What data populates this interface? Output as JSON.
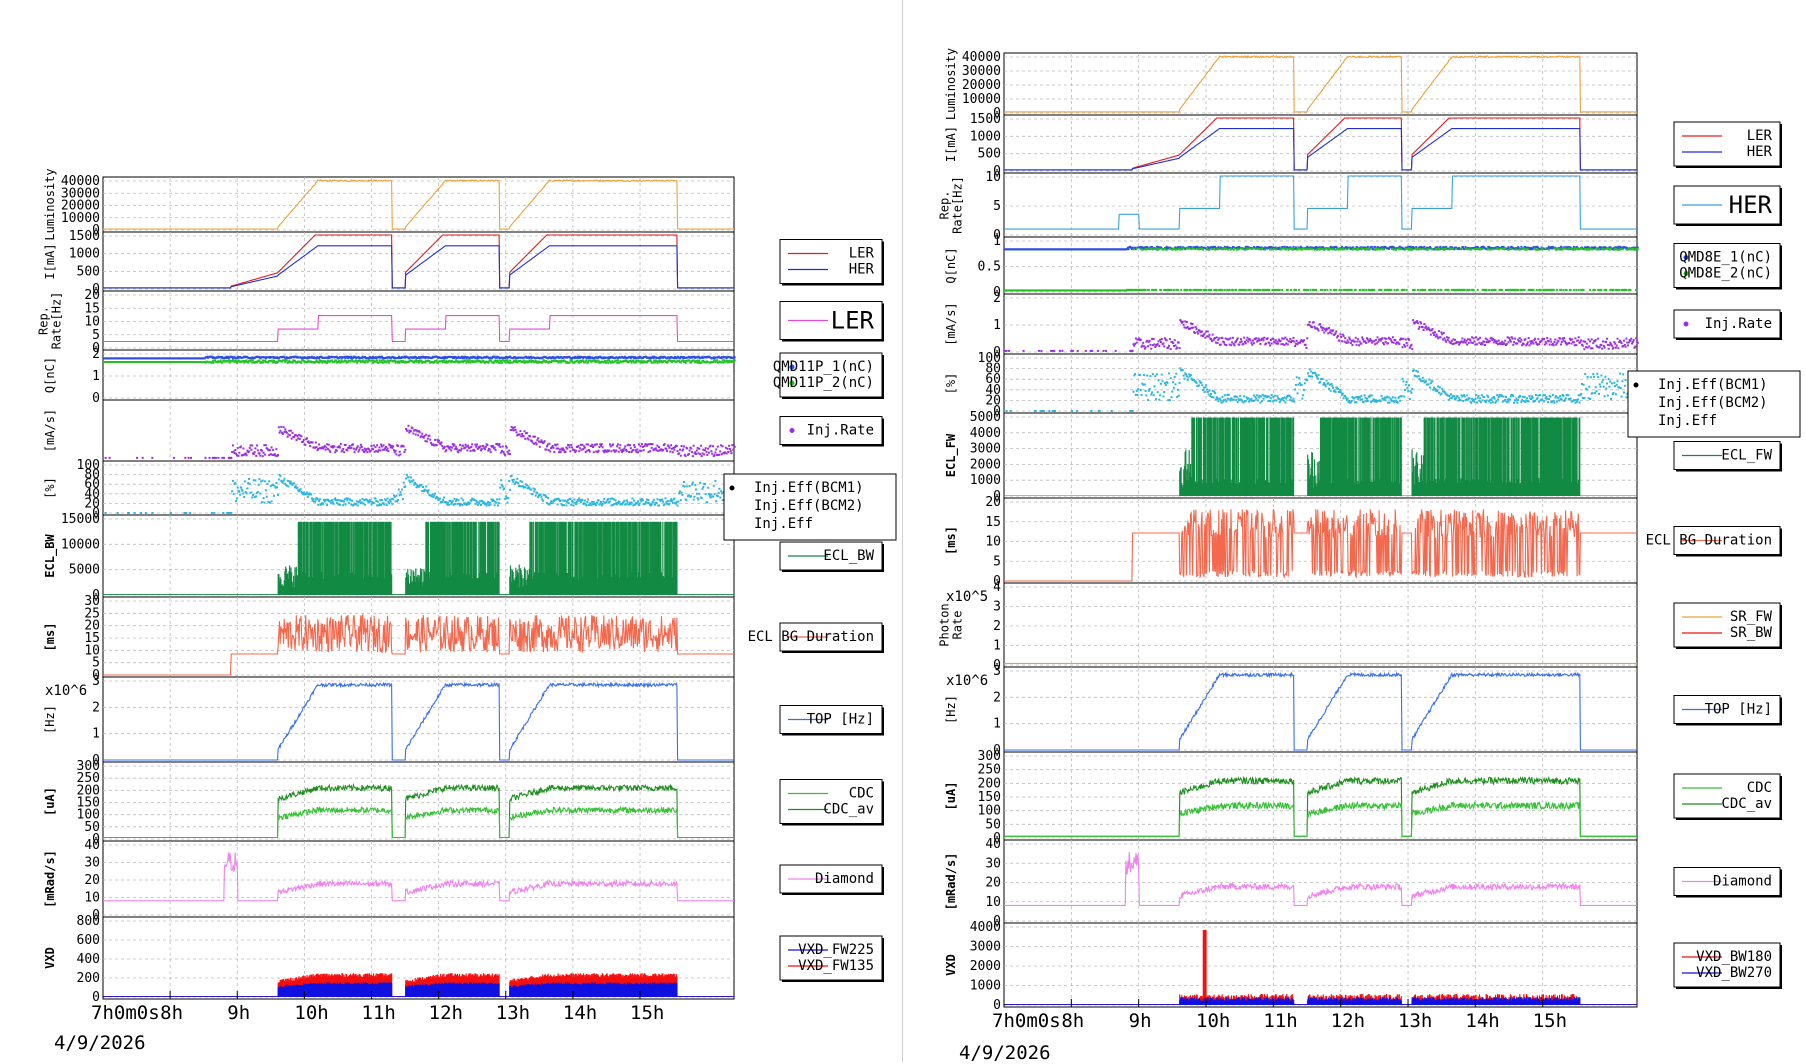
{
  "colors": {
    "luminosity": "#e8a33c",
    "ler": "#e41a1c",
    "her": "#1f2fd4",
    "rep": "#e64bd0",
    "rep_her": "#3aa0e0",
    "q1": "#2f50e0",
    "q2": "#22c422",
    "inj": "#9a2fe0",
    "eff": "#2bb6e0",
    "ecl": "#128a44",
    "eclbg": "#f4684e",
    "top": "#3a6ee8",
    "cdc": "#1e8e1e",
    "cdc_av": "#36c036",
    "diamond": "#ee82ee",
    "vxd1": "#1010e0",
    "vxd2": "#f21010",
    "sr_fw": "#e8a33c",
    "sr_bw": "#f21010"
  },
  "time_axis": {
    "ticks": [
      "7h0m0s",
      "8h",
      "9h",
      "10h",
      "11h",
      "12h",
      "13h",
      "14h",
      "15h"
    ],
    "range_hours": [
      7,
      16.4
    ]
  },
  "footer": {
    "left_date": "4/9/2026",
    "right_date": "4/9/2026"
  },
  "chart_data": [
    {
      "type": "line",
      "panel": "left",
      "rows": [
        {
          "ylabel": "Luminosity",
          "ymax": 40000,
          "yticks": [
            "40000",
            "30000",
            "20000",
            "10000",
            "0"
          ],
          "series": [
            {
              "kind": "luminosity",
              "color": "luminosity"
            }
          ],
          "legend": []
        },
        {
          "ylabel": "I[mA]",
          "ymax": 1500,
          "yticks": [
            "1500",
            "1000",
            "500",
            "0"
          ],
          "series": [
            {
              "kind": "current_ler",
              "color": "ler"
            },
            {
              "kind": "current_her",
              "color": "her"
            }
          ],
          "legend": [
            {
              "name": "LER",
              "color": "ler"
            },
            {
              "name": "HER",
              "color": "her"
            }
          ]
        },
        {
          "ylabel": "Rep. Rate[Hz]",
          "ymax": 20,
          "yticks": [
            "20",
            "15",
            "10",
            "5",
            "0"
          ],
          "series": [
            {
              "kind": "rep_ler",
              "color": "rep"
            }
          ],
          "legend": [
            {
              "name": "LER",
              "color": "rep",
              "big": true
            }
          ]
        },
        {
          "ylabel": "Q[nC]",
          "ymax": 3,
          "yticks": [
            "2",
            "1",
            "0"
          ],
          "series": [
            {
              "kind": "charge1",
              "color": "q1"
            },
            {
              "kind": "charge2",
              "color": "q2"
            }
          ],
          "legend": [
            {
              "name": "QMD11P_1(nC)",
              "color": "q1",
              "dot": true
            },
            {
              "name": "QMD11P_2(nC)",
              "color": "q2",
              "dot": true
            }
          ]
        },
        {
          "ylabel": "[mA/s]",
          "ymax": 2,
          "yticks": [],
          "series": [
            {
              "kind": "injrate",
              "color": "inj"
            }
          ],
          "legend": [
            {
              "name": "Inj.Rate",
              "color": "inj",
              "dot": true
            }
          ]
        },
        {
          "ylabel": "[%]",
          "ymax": 100,
          "yticks": [
            "100",
            "80",
            "60",
            "40",
            "20",
            "0"
          ],
          "series": [
            {
              "kind": "injeff",
              "color": "eff"
            }
          ],
          "legend": []
        },
        {
          "ylabel": "ECL_BW",
          "ymax": 15000,
          "yticks": [
            "15000",
            "10000",
            "5000",
            "0"
          ],
          "series": [
            {
              "kind": "ecl",
              "color": "ecl"
            }
          ],
          "legend": [
            {
              "name": "ECL_BW",
              "color": "ecl"
            }
          ]
        },
        {
          "ylabel": "[ms]",
          "ymax": 30,
          "yticks": [
            "30",
            "25",
            "20",
            "15",
            "10",
            "5",
            "0"
          ],
          "series": [
            {
              "kind": "eclbg",
              "color": "eclbg"
            }
          ],
          "legend": [
            {
              "name": "ECL BG Duration",
              "color": "eclbg"
            }
          ]
        },
        {
          "ylabel": "[Hz]",
          "ymax": 4,
          "yticks": [
            "3",
            "2",
            "1",
            "0"
          ],
          "exponent": "x10^6",
          "series": [
            {
              "kind": "top",
              "color": "top"
            }
          ],
          "legend": [
            {
              "name": "TOP [Hz]",
              "color": "top"
            }
          ]
        },
        {
          "ylabel": "[uA]",
          "ymax": 300,
          "yticks": [
            "300",
            "250",
            "200",
            "150",
            "100",
            "50",
            "0"
          ],
          "series": [
            {
              "kind": "cdc",
              "color": "cdc"
            },
            {
              "kind": "cdc_av",
              "color": "cdc_av"
            }
          ],
          "legend": [
            {
              "name": "CDC",
              "color": "cdc_av"
            },
            {
              "name": "CDC_av",
              "color": "cdc"
            }
          ]
        },
        {
          "ylabel": "[mRad/s]",
          "ymax": 50,
          "yticks": [
            "40",
            "30",
            "20",
            "10",
            "0"
          ],
          "series": [
            {
              "kind": "diamond",
              "color": "diamond"
            }
          ],
          "legend": [
            {
              "name": "Diamond",
              "color": "diamond"
            }
          ]
        },
        {
          "ylabel": "VXD",
          "ymax": 800,
          "yticks": [
            "800",
            "600",
            "400",
            "200",
            "0"
          ],
          "series": [
            {
              "kind": "vxd_red",
              "color": "vxd2"
            },
            {
              "kind": "vxd_blue",
              "color": "vxd1"
            }
          ],
          "legend": [
            {
              "name": "VXD_FW225",
              "color": "vxd1"
            },
            {
              "name": "VXD_FW135",
              "color": "vxd2"
            }
          ]
        }
      ],
      "floating_legend": [
        "Inj.Eff(BCM1)",
        "Inj.Eff(BCM2)",
        "Inj.Eff"
      ]
    },
    {
      "type": "line",
      "panel": "right",
      "rows": [
        {
          "ylabel": "Luminosity",
          "ymax": 40000,
          "yticks": [
            "40000",
            "30000",
            "20000",
            "10000",
            "0"
          ],
          "series": [
            {
              "kind": "luminosity",
              "color": "luminosity"
            }
          ],
          "legend": []
        },
        {
          "ylabel": "I[mA]",
          "ymax": 1500,
          "yticks": [
            "1500",
            "1000",
            "500",
            "0"
          ],
          "series": [
            {
              "kind": "current_ler",
              "color": "ler"
            },
            {
              "kind": "current_her",
              "color": "her"
            }
          ],
          "legend": [
            {
              "name": "LER",
              "color": "ler"
            },
            {
              "name": "HER",
              "color": "her"
            }
          ]
        },
        {
          "ylabel": "Rep. Rate[Hz]",
          "ymax": 10,
          "yticks": [
            "10",
            "5",
            "0"
          ],
          "series": [
            {
              "kind": "rep_her",
              "color": "rep_her"
            }
          ],
          "legend": [
            {
              "name": "HER",
              "color": "rep_her",
              "big": true
            }
          ]
        },
        {
          "ylabel": "Q[nC]",
          "ymax": 1.2,
          "yticks": [
            "1",
            "0.5",
            "0"
          ],
          "series": [
            {
              "kind": "charge1r",
              "color": "q1"
            },
            {
              "kind": "charge2r",
              "color": "q2"
            }
          ],
          "legend": [
            {
              "name": "QMD8E_1(nC)",
              "color": "q1",
              "dot": true
            },
            {
              "name": "QMD8E_2(nC)",
              "color": "q2",
              "dot": true
            }
          ]
        },
        {
          "ylabel": "[mA/s]",
          "ymax": 3,
          "yticks": [
            "2",
            "1",
            "0"
          ],
          "series": [
            {
              "kind": "injrate",
              "color": "inj"
            }
          ],
          "legend": [
            {
              "name": "Inj.Rate",
              "color": "inj",
              "dot": true
            }
          ]
        },
        {
          "ylabel": "[%]",
          "ymax": 100,
          "yticks": [
            "100",
            "80",
            "60",
            "40",
            "20",
            "0"
          ],
          "series": [
            {
              "kind": "injeff",
              "color": "eff"
            }
          ],
          "legend": []
        },
        {
          "ylabel": "ECL_FW",
          "ymax": 5000,
          "yticks": [
            "5000",
            "4000",
            "3000",
            "2000",
            "1000",
            "0"
          ],
          "series": [
            {
              "kind": "eclfw",
              "color": "ecl"
            }
          ],
          "legend": [
            {
              "name": "ECL_FW",
              "color": "ecl"
            }
          ]
        },
        {
          "ylabel": "[ms]",
          "ymax": 20,
          "yticks": [
            "20",
            "15",
            "10",
            "5",
            "0"
          ],
          "series": [
            {
              "kind": "eclbgr",
              "color": "eclbg"
            }
          ],
          "legend": [
            {
              "name": "ECL BG Duration",
              "color": "eclbg"
            }
          ]
        },
        {
          "ylabel": "Photon Rate",
          "ymax": 5,
          "yticks": [
            "4",
            "3",
            "2",
            "1",
            "0"
          ],
          "exponent": "x10^5",
          "series": [
            {
              "kind": "photon",
              "color": "sr_fw"
            }
          ],
          "legend": [
            {
              "name": "SR_FW",
              "color": "sr_fw"
            },
            {
              "name": "SR_BW",
              "color": "sr_bw"
            }
          ]
        },
        {
          "ylabel": "[Hz]",
          "ymax": 4,
          "yticks": [
            "3",
            "2",
            "1",
            "0"
          ],
          "exponent": "x10^6",
          "series": [
            {
              "kind": "top",
              "color": "top"
            }
          ],
          "legend": [
            {
              "name": "TOP [Hz]",
              "color": "top"
            }
          ]
        },
        {
          "ylabel": "[uA]",
          "ymax": 300,
          "yticks": [
            "300",
            "250",
            "200",
            "150",
            "100",
            "50",
            "0"
          ],
          "series": [
            {
              "kind": "cdc",
              "color": "cdc"
            },
            {
              "kind": "cdc_av",
              "color": "cdc_av"
            }
          ],
          "legend": [
            {
              "name": "CDC",
              "color": "cdc_av"
            },
            {
              "name": "CDC_av",
              "color": "cdc"
            }
          ]
        },
        {
          "ylabel": "[mRad/s]",
          "ymax": 50,
          "yticks": [
            "40",
            "30",
            "20",
            "10",
            "0"
          ],
          "series": [
            {
              "kind": "diamond",
              "color": "diamond"
            }
          ],
          "legend": [
            {
              "name": "Diamond",
              "color": "diamond"
            }
          ]
        },
        {
          "ylabel": "VXD",
          "ymax": 4000,
          "yticks": [
            "4000",
            "3000",
            "2000",
            "1000",
            "0"
          ],
          "series": [
            {
              "kind": "vxd_rb",
              "color": "vxd2"
            },
            {
              "kind": "vxd_bb",
              "color": "vxd1"
            }
          ],
          "legend": [
            {
              "name": "VXD_BW180",
              "color": "vxd2"
            },
            {
              "name": "VXD_BW270",
              "color": "vxd1"
            }
          ]
        }
      ],
      "floating_legend": [
        "Inj.Eff(BCM1)",
        "Inj.Eff(BCM2)",
        "Inj.Eff"
      ]
    }
  ]
}
